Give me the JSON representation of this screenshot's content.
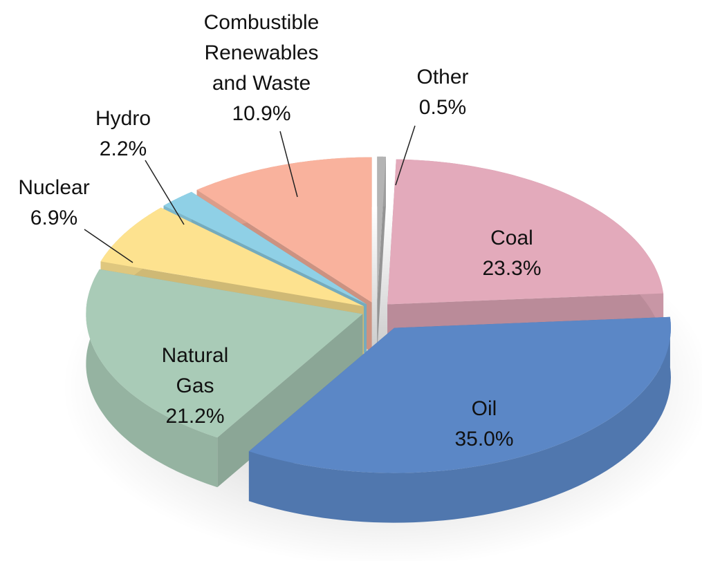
{
  "chart_data": {
    "type": "pie",
    "categories": [
      "Other",
      "Coal",
      "Oil",
      "Natural Gas",
      "Nuclear",
      "Hydro",
      "Combustible Renewables and Waste"
    ],
    "values": [
      0.5,
      23.3,
      35.0,
      21.2,
      6.9,
      2.2,
      10.9
    ],
    "value_labels": [
      "0.5%",
      "23.3%",
      "35.0%",
      "21.2%",
      "6.9%",
      "2.2%",
      "10.9%"
    ],
    "colors": [
      "#b4b4b4",
      "#e3aabb",
      "#5b87c6",
      "#a9cbb7",
      "#fde28f",
      "#8fd0e6",
      "#f9b29d"
    ]
  }
}
